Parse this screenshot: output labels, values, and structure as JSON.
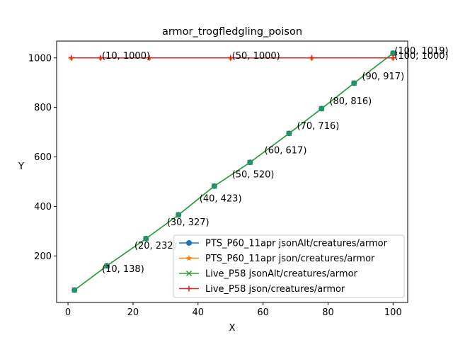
{
  "chart_data": {
    "type": "line",
    "title": "armor_trogfledgling_poison",
    "xlabel": "X",
    "ylabel": "Y",
    "xlim": [
      -3.5,
      104.5
    ],
    "ylim": [
      12,
      1068
    ],
    "xticks": [
      0,
      20,
      40,
      60,
      80,
      100
    ],
    "yticks": [
      200,
      400,
      600,
      800,
      1000
    ],
    "grid": false,
    "legend_position": "lower-right",
    "series": [
      {
        "name": "PTS_P60_11apr jsonAlt/creatures/armor",
        "color": "#1f77b4",
        "marker": "circle",
        "x": [
          2,
          12,
          24,
          34,
          45,
          56,
          68,
          78,
          88,
          100
        ],
        "y": [
          62,
          160,
          270,
          366,
          482,
          578,
          695,
          795,
          898,
          1019
        ]
      },
      {
        "name": "PTS_P60_11apr json/creatures/armor",
        "color": "#ff7f0e",
        "marker": "star",
        "x": [
          1,
          10,
          25,
          50,
          75,
          100
        ],
        "y": [
          1000,
          1000,
          1000,
          1000,
          1000,
          1000
        ]
      },
      {
        "name": "Live_P58 jsonAlt/creatures/armor",
        "color": "#2ca02c",
        "marker": "x",
        "x": [
          2,
          12,
          24,
          34,
          45,
          56,
          68,
          78,
          88,
          100
        ],
        "y": [
          62,
          160,
          270,
          366,
          482,
          578,
          695,
          795,
          898,
          1019
        ]
      },
      {
        "name": "Live_P58 json/creatures/armor",
        "color": "#d62728",
        "marker": "plus",
        "x": [
          1,
          10,
          25,
          50,
          75,
          100
        ],
        "y": [
          1000,
          1000,
          1000,
          1000,
          1000,
          1000
        ]
      }
    ],
    "annotations": [
      {
        "text": "(10, 138)",
        "x": 10,
        "y": 138
      },
      {
        "text": "(20, 232)",
        "x": 20,
        "y": 232
      },
      {
        "text": "(30, 327)",
        "x": 30,
        "y": 327
      },
      {
        "text": "(40, 423)",
        "x": 40,
        "y": 423
      },
      {
        "text": "(50, 520)",
        "x": 50,
        "y": 520
      },
      {
        "text": "(60, 617)",
        "x": 60,
        "y": 617
      },
      {
        "text": "(70, 716)",
        "x": 70,
        "y": 716
      },
      {
        "text": "(80, 816)",
        "x": 80,
        "y": 816
      },
      {
        "text": "(90, 917)",
        "x": 90,
        "y": 917
      },
      {
        "text": "(100, 1019)",
        "x": 100,
        "y": 1019
      },
      {
        "text": "(10, 1000)",
        "x": 10,
        "y": 1000
      },
      {
        "text": "(50, 1000)",
        "x": 50,
        "y": 1000
      },
      {
        "text": "(100, 1000)",
        "x": 100,
        "y": 1000
      }
    ]
  }
}
